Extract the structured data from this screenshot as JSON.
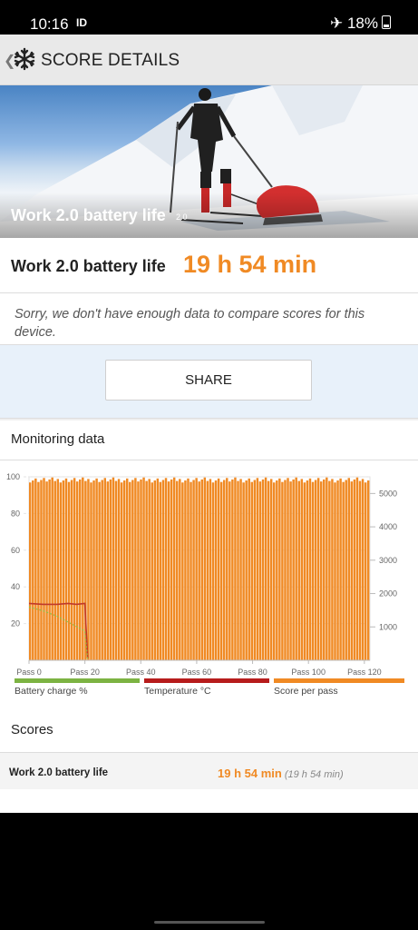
{
  "status_bar": {
    "time": "10:16",
    "notification": "ID",
    "battery": "18%"
  },
  "header": {
    "title": "SCORE DETAILS",
    "back_icon": "chevron-left-icon",
    "logo_icon": "snowflake-icon"
  },
  "hero": {
    "label": "Work 2.0 battery life",
    "version": "2.0"
  },
  "score": {
    "label": "Work 2.0 battery life",
    "value": "19 h 54 min"
  },
  "compare_note": "Sorry, we don't have enough data to compare scores for this device.",
  "share": {
    "label": "SHARE"
  },
  "monitoring": {
    "title": "Monitoring data"
  },
  "chart_data": {
    "type": "bar",
    "x_ticks": [
      "Pass 0",
      "Pass 20",
      "Pass 40",
      "Pass 60",
      "Pass 80",
      "Pass 100",
      "Pass 120"
    ],
    "left_axis_ticks": [
      20,
      40,
      60,
      80,
      100
    ],
    "right_axis_ticks": [
      1000,
      2000,
      3000,
      4000,
      5000
    ],
    "ylim_left": [
      0,
      100
    ],
    "ylim_right": [
      0,
      5500
    ],
    "passes": 123,
    "series": [
      {
        "name": "Score per pass",
        "color": "#f08a24",
        "value_approx": 5400,
        "range": [
          5330,
          5480
        ]
      },
      {
        "name": "Temperature °C",
        "color": "#c0392b",
        "points": [
          [
            0,
            31
          ],
          [
            5,
            30.5
          ],
          [
            10,
            30.5
          ],
          [
            14,
            31
          ],
          [
            17,
            30.5
          ],
          [
            20,
            31
          ],
          [
            21,
            1
          ]
        ]
      },
      {
        "name": "Battery charge %",
        "color": "#8bc34a",
        "points": [
          [
            0,
            29
          ],
          [
            5,
            27
          ],
          [
            10,
            24
          ],
          [
            15,
            20
          ],
          [
            20,
            16
          ],
          [
            21,
            0
          ]
        ]
      }
    ],
    "legend": [
      "Battery charge %",
      "Temperature °C",
      "Score per pass"
    ],
    "legend_colors": [
      "#7cb342",
      "#b71c1c",
      "#f08a24"
    ],
    "grid": true
  },
  "scores": {
    "title": "Scores",
    "rows": [
      {
        "label": "Work 2.0 battery life",
        "value": "19 h 54 min",
        "sub": "(19 h 54 min)"
      }
    ]
  }
}
